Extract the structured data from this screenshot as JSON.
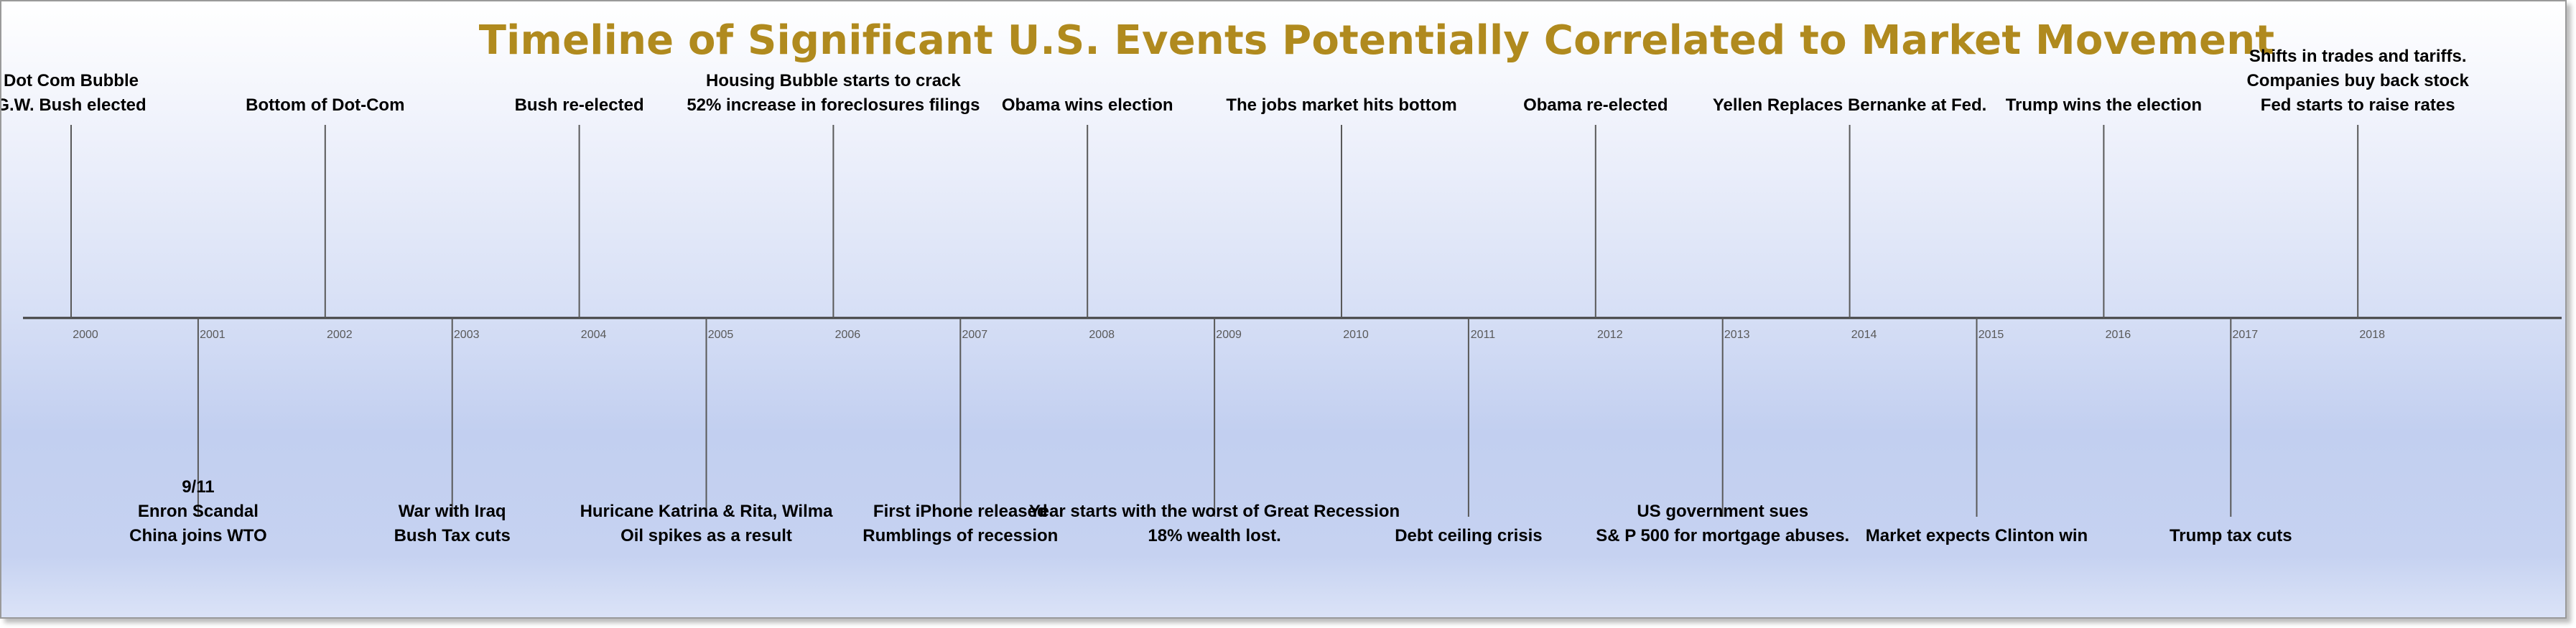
{
  "title": "Timeline of Significant U.S. Events Potentially Correlated to Market Movement",
  "years": [
    "2000",
    "2001",
    "2002",
    "2003",
    "2004",
    "2005",
    "2006",
    "2007",
    "2008",
    "2009",
    "2010",
    "2011",
    "2012",
    "2013",
    "2014",
    "2015",
    "2016",
    "2017",
    "2018"
  ],
  "events": [
    {
      "year": "2000",
      "position": "above",
      "lines": [
        "Dot Com Bubble",
        "G.W. Bush elected"
      ]
    },
    {
      "year": "2001",
      "position": "below",
      "lines": [
        "9/11",
        "Enron Scandal",
        "China joins WTO"
      ]
    },
    {
      "year": "2002",
      "position": "above",
      "lines": [
        "Bottom of Dot-Com"
      ]
    },
    {
      "year": "2003",
      "position": "below",
      "lines": [
        "War with Iraq",
        "Bush  Tax cuts"
      ]
    },
    {
      "year": "2004",
      "position": "above",
      "lines": [
        "Bush re-elected"
      ]
    },
    {
      "year": "2005",
      "position": "below",
      "lines": [
        "Huricane Katrina & Rita, Wilma",
        "Oil spikes as a result"
      ]
    },
    {
      "year": "2006",
      "position": "above",
      "lines": [
        "Housing Bubble starts to crack",
        "52% increase in foreclosures filings"
      ]
    },
    {
      "year": "2007",
      "position": "below",
      "lines": [
        "First iPhone released",
        "Rumblings of recession"
      ]
    },
    {
      "year": "2008",
      "position": "above",
      "lines": [
        "Obama wins election"
      ]
    },
    {
      "year": "2009",
      "position": "below",
      "lines": [
        "Year starts with the worst of Great Recession",
        "18% wealth lost."
      ]
    },
    {
      "year": "2010",
      "position": "above",
      "lines": [
        "The jobs market hits bottom"
      ]
    },
    {
      "year": "2011",
      "position": "below",
      "lines": [
        "Debt ceiling crisis"
      ]
    },
    {
      "year": "2012",
      "position": "above",
      "lines": [
        "Obama re-elected"
      ]
    },
    {
      "year": "2013",
      "position": "below",
      "lines": [
        "US government sues",
        "S& P 500 for mortgage abuses."
      ]
    },
    {
      "year": "2014",
      "position": "above",
      "lines": [
        "Yellen Replaces Bernanke at Fed."
      ]
    },
    {
      "year": "2015",
      "position": "below",
      "lines": [
        "Market expects Clinton win"
      ]
    },
    {
      "year": "2016",
      "position": "above",
      "lines": [
        "Trump wins the election"
      ]
    },
    {
      "year": "2017",
      "position": "below",
      "lines": [
        "Trump tax cuts"
      ]
    },
    {
      "year": "2018",
      "position": "above",
      "lines": [
        "Shifts in trades and tariffs.",
        "Companies buy back stock",
        "Fed starts to raise rates"
      ]
    }
  ],
  "colors": {
    "title": "#b08a1e",
    "axis": "#404040",
    "stem": "#595959",
    "year_label": "#595959",
    "event_label": "#000000"
  }
}
